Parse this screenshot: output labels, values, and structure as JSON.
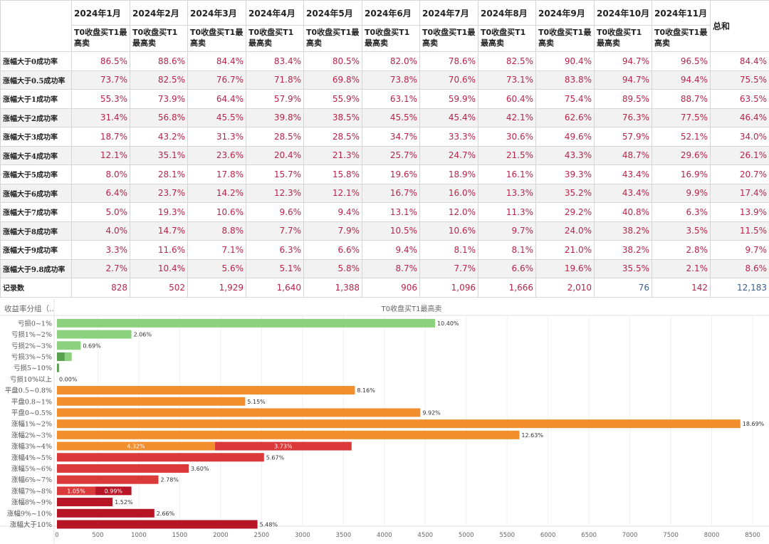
{
  "table": {
    "months": [
      "2024年1月",
      "2024年2月",
      "2024年3月",
      "2024年4月",
      "2024年5月",
      "2024年6月",
      "2024年7月",
      "2024年8月",
      "2024年9月",
      "2024年10月",
      "2024年11月"
    ],
    "measure_labels": [
      "T0收盘买T1最高卖",
      "T0收盘买T1最高卖",
      "T0收盘买T1最高卖",
      "T0收盘买T1最高卖",
      "T0收盘买T1最高卖",
      "T0收盘买T1最高卖",
      "T0收盘买T1最高卖",
      "T0收盘买T1最高卖",
      "T0收盘买T1最高卖",
      "T0收盘买T1最高卖",
      "T0收盘买T1最高卖"
    ],
    "total_header": "总和",
    "rows": [
      {
        "label": "涨幅大于0成功率",
        "values": [
          "86.5%",
          "88.6%",
          "84.4%",
          "83.4%",
          "80.5%",
          "82.0%",
          "78.6%",
          "82.5%",
          "90.4%",
          "94.7%",
          "96.5%"
        ],
        "total": "84.4%"
      },
      {
        "label": "涨幅大于0.5成功率",
        "values": [
          "73.7%",
          "82.5%",
          "76.7%",
          "71.8%",
          "69.8%",
          "73.8%",
          "70.6%",
          "73.1%",
          "83.8%",
          "94.7%",
          "94.4%"
        ],
        "total": "75.5%"
      },
      {
        "label": "涨幅大于1成功率",
        "values": [
          "55.3%",
          "73.9%",
          "64.4%",
          "57.9%",
          "55.9%",
          "63.1%",
          "59.9%",
          "60.4%",
          "75.4%",
          "89.5%",
          "88.7%"
        ],
        "total": "63.5%"
      },
      {
        "label": "涨幅大于2成功率",
        "values": [
          "31.4%",
          "56.8%",
          "45.5%",
          "39.8%",
          "38.5%",
          "45.5%",
          "45.4%",
          "42.1%",
          "62.6%",
          "76.3%",
          "77.5%"
        ],
        "total": "46.4%"
      },
      {
        "label": "涨幅大于3成功率",
        "values": [
          "18.7%",
          "43.2%",
          "31.3%",
          "28.5%",
          "28.5%",
          "34.7%",
          "33.3%",
          "30.6%",
          "49.6%",
          "57.9%",
          "52.1%"
        ],
        "total": "34.0%"
      },
      {
        "label": "涨幅大于4成功率",
        "values": [
          "12.1%",
          "35.1%",
          "23.6%",
          "20.4%",
          "21.3%",
          "25.7%",
          "24.7%",
          "21.5%",
          "43.3%",
          "48.7%",
          "29.6%"
        ],
        "total": "26.1%"
      },
      {
        "label": "涨幅大于5成功率",
        "values": [
          "8.0%",
          "28.1%",
          "17.8%",
          "15.7%",
          "15.8%",
          "19.6%",
          "18.9%",
          "16.1%",
          "39.3%",
          "43.4%",
          "16.9%"
        ],
        "total": "20.7%"
      },
      {
        "label": "涨幅大于6成功率",
        "values": [
          "6.4%",
          "23.7%",
          "14.2%",
          "12.3%",
          "12.1%",
          "16.7%",
          "16.0%",
          "13.3%",
          "35.2%",
          "43.4%",
          "9.9%"
        ],
        "total": "17.4%"
      },
      {
        "label": "涨幅大于7成功率",
        "values": [
          "5.0%",
          "19.3%",
          "10.6%",
          "9.6%",
          "9.4%",
          "13.1%",
          "12.0%",
          "11.3%",
          "29.2%",
          "40.8%",
          "6.3%"
        ],
        "total": "13.9%"
      },
      {
        "label": "涨幅大于8成功率",
        "values": [
          "4.0%",
          "14.7%",
          "8.8%",
          "7.7%",
          "7.9%",
          "10.5%",
          "10.6%",
          "9.7%",
          "24.0%",
          "38.2%",
          "3.5%"
        ],
        "total": "11.5%"
      },
      {
        "label": "涨幅大于9成功率",
        "values": [
          "3.3%",
          "11.6%",
          "7.1%",
          "6.3%",
          "6.6%",
          "9.4%",
          "8.1%",
          "8.1%",
          "21.0%",
          "38.2%",
          "2.8%"
        ],
        "total": "9.7%"
      },
      {
        "label": "涨幅大于9.8成功率",
        "values": [
          "2.7%",
          "10.4%",
          "5.6%",
          "5.1%",
          "5.8%",
          "8.7%",
          "7.7%",
          "6.6%",
          "19.6%",
          "35.5%",
          "2.1%"
        ],
        "total": "8.6%"
      },
      {
        "label": "记录数",
        "values": [
          "828",
          "502",
          "1,929",
          "1,640",
          "1,388",
          "906",
          "1,096",
          "1,666",
          "2,010",
          "76",
          "142"
        ],
        "total": "12,183"
      }
    ]
  },
  "chart_data": {
    "type": "bar",
    "orientation": "horizontal",
    "title": "T0收盘买T1最高卖",
    "row_header": "收益率分组（..",
    "xlim": [
      0,
      8700
    ],
    "xticks": [
      0,
      500,
      1000,
      1500,
      2000,
      2500,
      3000,
      3500,
      4000,
      4500,
      5000,
      5500,
      6000,
      6500,
      7000,
      7500,
      8000,
      8500
    ],
    "categories": [
      "亏损0~1%",
      "亏损1%~2%",
      "亏损2%~3%",
      "亏损3%~5%",
      "亏损5~10%",
      "亏损10%以上",
      "平盘0.5~0.8%",
      "平盘0.8~1%",
      "平盘0~0.5%",
      "涨幅1%~2%",
      "涨幅2%~3%",
      "涨幅3%~4%",
      "涨幅4%~5%",
      "涨幅5%~6%",
      "涨幅6%~7%",
      "涨幅7%~8%",
      "涨幅8%~9%",
      "涨幅9%~10%",
      "涨幅大于10%"
    ],
    "bars": [
      {
        "segments": [
          {
            "value": 4620,
            "label": "",
            "color": "#8cd17d"
          }
        ],
        "end_label": "10.40%"
      },
      {
        "segments": [
          {
            "value": 910,
            "label": "",
            "color": "#8cd17d"
          }
        ],
        "end_label": "2.06%"
      },
      {
        "segments": [
          {
            "value": 290,
            "label": "",
            "color": "#8cd17d"
          }
        ],
        "end_label": "0.69%"
      },
      {
        "segments": [
          {
            "value": 95,
            "label": "",
            "color": "#59a14f"
          },
          {
            "value": 85,
            "label": "",
            "color": "#8cd17d"
          }
        ],
        "end_label": ""
      },
      {
        "segments": [
          {
            "value": 25,
            "label": "",
            "color": "#59a14f"
          }
        ],
        "end_label": ""
      },
      {
        "segments": [
          {
            "value": 0,
            "label": "",
            "color": "#59a14f"
          }
        ],
        "end_label": "0.00%"
      },
      {
        "segments": [
          {
            "value": 3640,
            "label": "",
            "color": "#f28e2b"
          }
        ],
        "end_label": "8.16%"
      },
      {
        "segments": [
          {
            "value": 2300,
            "label": "",
            "color": "#f28e2b"
          }
        ],
        "end_label": "5.15%"
      },
      {
        "segments": [
          {
            "value": 4440,
            "label": "",
            "color": "#f28e2b"
          }
        ],
        "end_label": "9.92%"
      },
      {
        "segments": [
          {
            "value": 8350,
            "label": "",
            "color": "#f28e2b"
          }
        ],
        "end_label": "18.69%"
      },
      {
        "segments": [
          {
            "value": 5650,
            "label": "",
            "color": "#f28e2b"
          }
        ],
        "end_label": "12.63%"
      },
      {
        "segments": [
          {
            "value": 1930,
            "label": "4.32%",
            "color": "#f28e2b"
          },
          {
            "value": 1670,
            "label": "3.73%",
            "color": "#dc3a3a"
          }
        ],
        "end_label": ""
      },
      {
        "segments": [
          {
            "value": 2530,
            "label": "",
            "color": "#dc3a3a"
          }
        ],
        "end_label": "5.67%"
      },
      {
        "segments": [
          {
            "value": 1610,
            "label": "",
            "color": "#dc3a3a"
          }
        ],
        "end_label": "3.60%"
      },
      {
        "segments": [
          {
            "value": 1240,
            "label": "",
            "color": "#dc3a3a"
          }
        ],
        "end_label": "2.78%"
      },
      {
        "segments": [
          {
            "value": 470,
            "label": "1.05%",
            "color": "#dc3a3a"
          },
          {
            "value": 440,
            "label": "0.99%",
            "color": "#b71526"
          }
        ],
        "end_label": ""
      },
      {
        "segments": [
          {
            "value": 680,
            "label": "",
            "color": "#b71526"
          }
        ],
        "end_label": "1.52%"
      },
      {
        "segments": [
          {
            "value": 1190,
            "label": "",
            "color": "#b71526"
          }
        ],
        "end_label": "2.66%"
      },
      {
        "segments": [
          {
            "value": 2450,
            "label": "",
            "color": "#b71526"
          }
        ],
        "end_label": "5.48%"
      }
    ]
  }
}
